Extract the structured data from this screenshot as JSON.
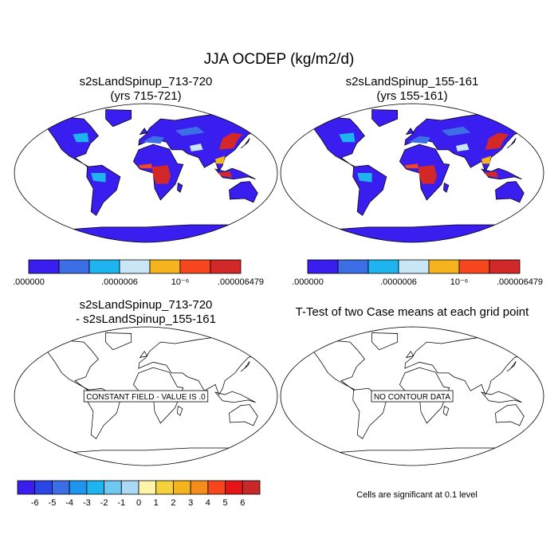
{
  "title": "JJA OCDEP (kg/m2/d)",
  "panels": [
    {
      "title": "s2sLandSpinup_713-720",
      "subtitle": "(yrs 715-721)"
    },
    {
      "title": "s2sLandSpinup_155-161",
      "subtitle": "(yrs 155-161)"
    },
    {
      "title": "s2sLandSpinup_713-720",
      "subtitle": "- s2sLandSpinup_155-161",
      "note": "CONSTANT FIELD - VALUE IS .0"
    },
    {
      "title": "T-Test of two Case means at each grid point",
      "note": "NO CONTOUR DATA",
      "footer": "Cells are significant at 0.1 level"
    }
  ],
  "colorbars": [
    {
      "colors": [
        "#3a1ef0",
        "#3c6ee6",
        "#1eb4f0",
        "#c8e6f5",
        "#f5b41e",
        "#f5461e",
        "#d22828"
      ],
      "labels": [
        ".000000",
        null,
        null,
        ".0000006",
        null,
        "10⁻⁶",
        null,
        ".000006479"
      ]
    },
    {
      "colors": [
        "#3a1ef0",
        "#2a46e6",
        "#3c6ee6",
        "#1e96f0",
        "#1eb4f0",
        "#6ec8f0",
        "#aad8f5",
        "#fff5aa",
        "#f5d23c",
        "#f5b41e",
        "#f58c1e",
        "#f5461e",
        "#e61414",
        "#c82828"
      ],
      "labels": [
        null,
        "-6",
        "-5",
        "-4",
        "-3",
        "-2",
        "-1",
        "0",
        "1",
        "2",
        "3",
        "4",
        "5",
        "6",
        null
      ]
    }
  ]
}
